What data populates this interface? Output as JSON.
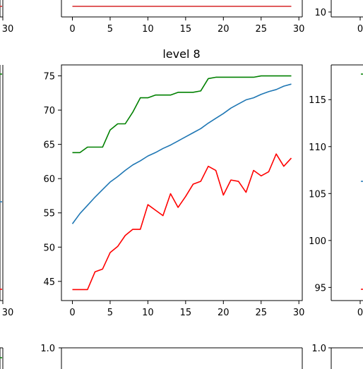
{
  "chart_data": [
    {
      "type": "line",
      "panel": "top-center (partial)",
      "x": [
        0,
        29
      ],
      "series": [
        {
          "color": "#d62728",
          "values": [
            0,
            0
          ]
        }
      ],
      "xticks": [
        "0",
        "5",
        "10",
        "15",
        "20",
        "25",
        "30"
      ],
      "xlim": [
        -1.45,
        30.45
      ]
    },
    {
      "type": "line",
      "panel": "top-left (partial)",
      "xticks": [
        "30"
      ]
    },
    {
      "type": "line",
      "panel": "top-right (partial)",
      "yticks": [
        "10"
      ],
      "xticks": [
        "0"
      ]
    },
    {
      "type": "line",
      "panel": "middle-center",
      "title": "level 8",
      "x": [
        0,
        1,
        2,
        3,
        4,
        5,
        6,
        7,
        8,
        9,
        10,
        11,
        12,
        13,
        14,
        15,
        16,
        17,
        18,
        19,
        20,
        21,
        22,
        23,
        24,
        25,
        26,
        27,
        28,
        29
      ],
      "series": [
        {
          "color": "#008000",
          "values": [
            63.8,
            63.8,
            64.6,
            64.6,
            64.6,
            67.1,
            68.0,
            68.0,
            69.7,
            71.8,
            71.8,
            72.2,
            72.2,
            72.2,
            72.6,
            72.6,
            72.6,
            72.8,
            74.6,
            74.8,
            74.8,
            74.8,
            74.8,
            74.8,
            74.8,
            75.0,
            75.0,
            75.0,
            75.0,
            75.0
          ]
        },
        {
          "color": "#1f77b4",
          "values": [
            53.4,
            54.9,
            56.1,
            57.3,
            58.4,
            59.5,
            60.3,
            61.2,
            62.0,
            62.6,
            63.3,
            63.8,
            64.4,
            64.9,
            65.5,
            66.1,
            66.7,
            67.3,
            68.1,
            68.8,
            69.5,
            70.3,
            70.9,
            71.5,
            71.8,
            72.3,
            72.7,
            73.0,
            73.5,
            73.8
          ]
        },
        {
          "color": "#ff0000",
          "values": [
            43.8,
            43.8,
            43.8,
            46.4,
            46.8,
            49.2,
            50.1,
            51.7,
            52.6,
            52.6,
            56.2,
            55.4,
            54.6,
            57.8,
            55.8,
            57.4,
            59.2,
            59.6,
            61.8,
            61.2,
            57.6,
            59.8,
            59.6,
            58.0,
            61.2,
            60.4,
            61.0,
            63.6,
            61.8,
            63.0
          ]
        }
      ],
      "xticks": [
        "0",
        "5",
        "10",
        "15",
        "20",
        "25",
        "30"
      ],
      "yticks": [
        "45",
        "50",
        "55",
        "60",
        "65",
        "70",
        "75"
      ],
      "xlim": [
        -1.45,
        30.45
      ],
      "ylim": [
        42.2,
        76.6
      ]
    },
    {
      "type": "line",
      "panel": "middle-left (partial)",
      "xticks": [
        "30"
      ]
    },
    {
      "type": "line",
      "panel": "middle-right (partial)",
      "yticks": [
        "95",
        "100",
        "105",
        "110",
        "115"
      ],
      "xticks": [
        "0"
      ],
      "ylim": [
        93.6,
        118.7
      ]
    },
    {
      "type": "line",
      "panel": "bottom-left (partial)"
    },
    {
      "type": "line",
      "panel": "bottom-center (partial)",
      "yticks": [
        "1.0"
      ]
    },
    {
      "type": "line",
      "panel": "bottom-right (partial)",
      "yticks": [
        "1.0"
      ]
    }
  ]
}
